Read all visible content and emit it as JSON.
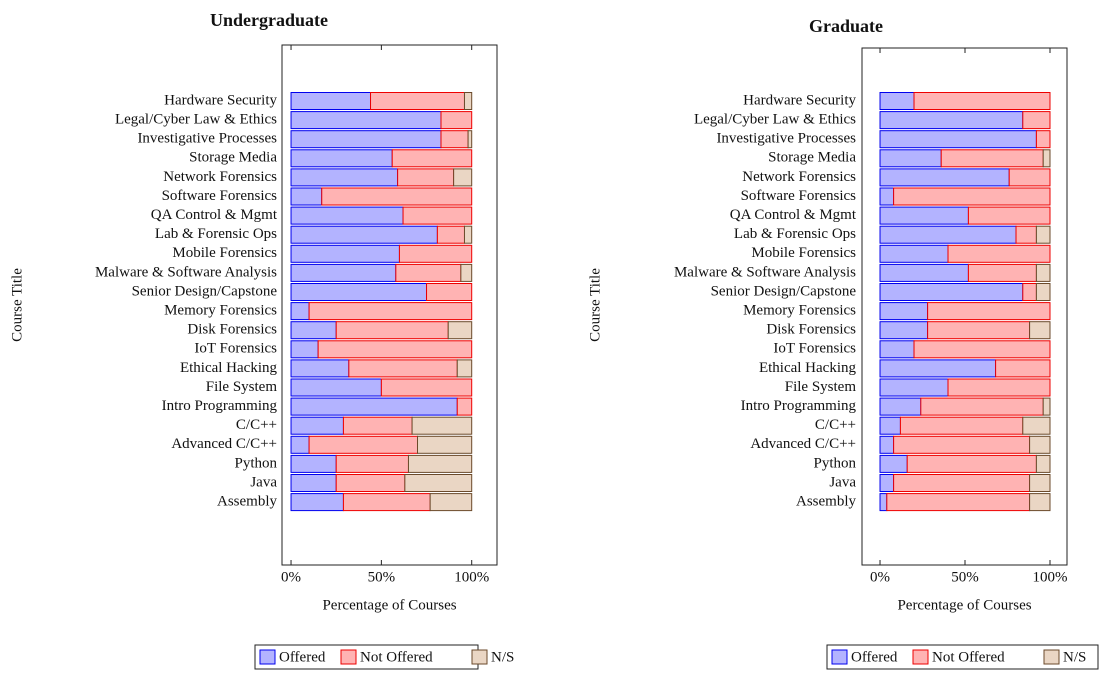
{
  "chart_data": [
    {
      "type": "bar",
      "orientation": "horizontal",
      "stacked": true,
      "title": "Undergraduate",
      "categories": [
        "Hardware Security",
        "Legal/Cyber Law & Ethics",
        "Investigative Processes",
        "Storage Media",
        "Network Forensics",
        "Software Forensics",
        "QA Control & Mgmt",
        "Lab & Forensic Ops",
        "Mobile Forensics",
        "Malware & Software Analysis",
        "Senior Design/Capstone",
        "Memory Forensics",
        "Disk Forensics",
        "IoT Forensics",
        "Ethical Hacking",
        "File System",
        "Intro Programming",
        "C/C++",
        "Advanced C/C++",
        "Python",
        "Java",
        "Assembly"
      ],
      "series": [
        {
          "name": "Offered",
          "color": "#b3b3ff",
          "values": [
            44,
            83,
            83,
            56,
            59,
            17,
            62,
            81,
            60,
            58,
            75,
            10,
            25,
            15,
            32,
            50,
            92,
            29,
            10,
            25,
            25,
            29
          ]
        },
        {
          "name": "Not Offered",
          "color": "#ffb3b3",
          "values": [
            52,
            17,
            15,
            44,
            31,
            83,
            38,
            15,
            40,
            36,
            25,
            90,
            62,
            85,
            60,
            50,
            8,
            38,
            60,
            40,
            38,
            48
          ]
        },
        {
          "name": "N/S",
          "color": "#ead6c4",
          "values": [
            4,
            0,
            2,
            0,
            10,
            0,
            0,
            4,
            0,
            6,
            0,
            0,
            13,
            0,
            8,
            0,
            0,
            33,
            30,
            35,
            37,
            23
          ]
        }
      ],
      "xlim": [
        -5,
        114
      ],
      "xticks": [
        {
          "value": 0,
          "label": "0%"
        },
        {
          "value": 50,
          "label": "50%"
        },
        {
          "value": 100,
          "label": "100%"
        }
      ],
      "xlabel": "Percentage of Courses",
      "ylabel": "Course Title"
    },
    {
      "type": "bar",
      "orientation": "horizontal",
      "stacked": true,
      "title": "Graduate",
      "categories": [
        "Hardware Security",
        "Legal/Cyber Law & Ethics",
        "Investigative Processes",
        "Storage Media",
        "Network Forensics",
        "Software Forensics",
        "QA Control & Mgmt",
        "Lab & Forensic Ops",
        "Mobile Forensics",
        "Malware & Software Analysis",
        "Senior Design/Capstone",
        "Memory Forensics",
        "Disk Forensics",
        "IoT Forensics",
        "Ethical Hacking",
        "File System",
        "Intro Programming",
        "C/C++",
        "Advanced C/C++",
        "Python",
        "Java",
        "Assembly"
      ],
      "series": [
        {
          "name": "Offered",
          "color": "#b3b3ff",
          "values": [
            20,
            84,
            92,
            36,
            76,
            8,
            52,
            80,
            40,
            52,
            84,
            28,
            28,
            20,
            68,
            40,
            24,
            12,
            8,
            16,
            8,
            4
          ]
        },
        {
          "name": "Not Offered",
          "color": "#ffb3b3",
          "values": [
            80,
            16,
            8,
            60,
            24,
            92,
            48,
            12,
            60,
            40,
            8,
            72,
            60,
            80,
            32,
            60,
            72,
            72,
            80,
            76,
            80,
            84
          ]
        },
        {
          "name": "N/S",
          "color": "#ead6c4",
          "values": [
            0,
            0,
            0,
            4,
            0,
            0,
            0,
            8,
            0,
            8,
            8,
            0,
            12,
            0,
            0,
            0,
            4,
            16,
            12,
            8,
            12,
            12
          ]
        }
      ],
      "xlim": [
        -10.6,
        110
      ],
      "xticks": [
        {
          "value": 0,
          "label": "0%"
        },
        {
          "value": 50,
          "label": "50%"
        },
        {
          "value": 100,
          "label": "100%"
        }
      ],
      "xlabel": "Percentage of Courses",
      "ylabel": "Course Title"
    }
  ]
}
